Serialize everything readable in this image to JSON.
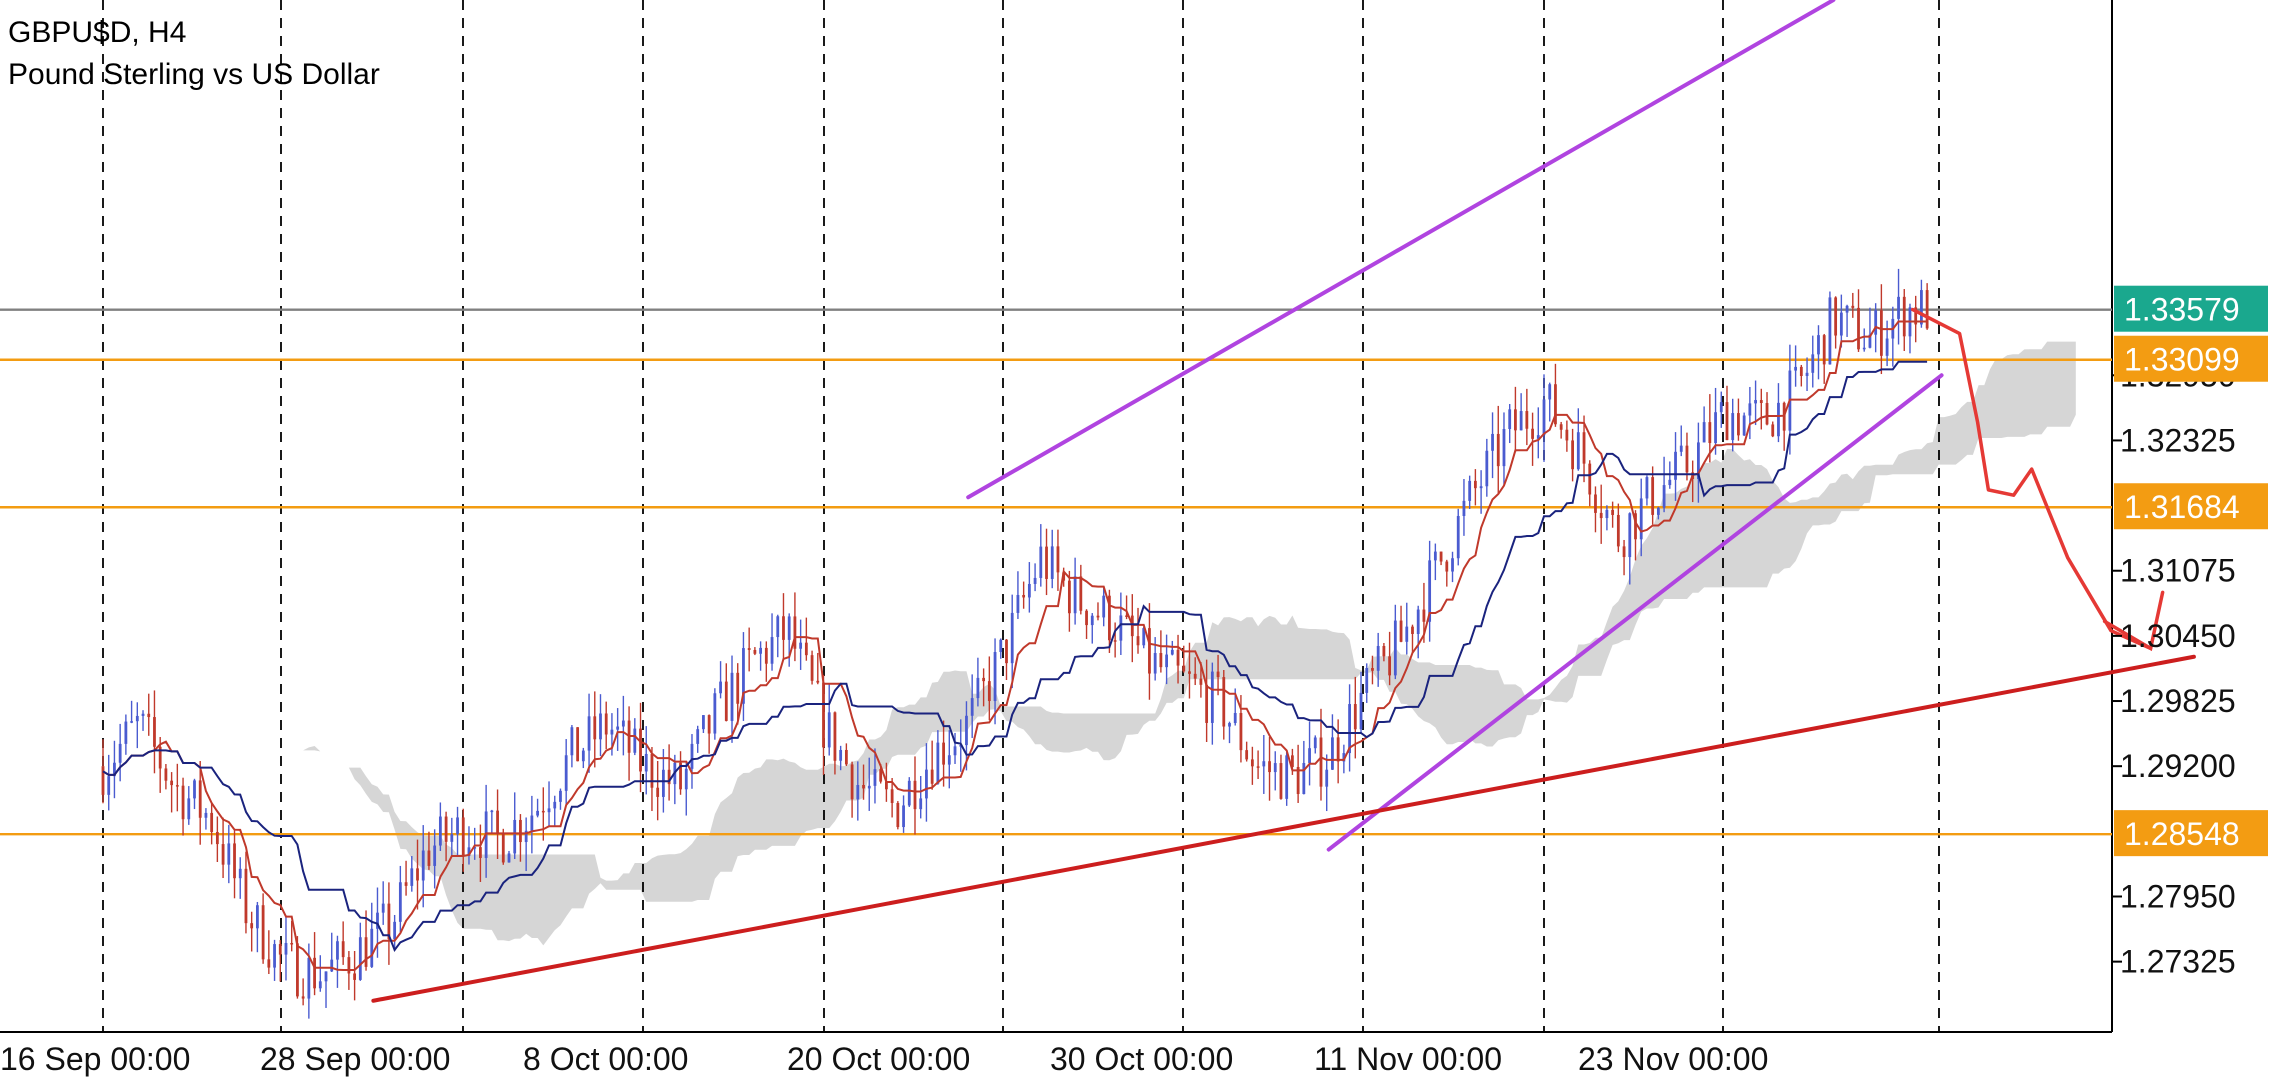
{
  "header": {
    "symbol_line": "GBPU$D, H4",
    "description": "Pound Sterling vs US Dollar"
  },
  "colors": {
    "level": "#f39c12",
    "current": "#808080",
    "current_tag": "#1aa88e",
    "channel": "#b044e0",
    "trend": "#cc1e1e",
    "tenkan": "#c0392b",
    "kijun": "#1a237e",
    "cloud": "#c8c8c8",
    "candle_up": "#4a5bd0",
    "candle_down": "#c0392b",
    "grid": "#000000",
    "annotation": "#e53935"
  },
  "chart_data": {
    "type": "candlestick",
    "symbol": "GBPU$D",
    "timeframe": "H4",
    "ylim": [
      1.2665,
      1.3655
    ],
    "y_ticks": [
      "1.27325",
      "1.27950",
      "1.29200",
      "1.29825",
      "1.30450",
      "1.31075",
      "1.32325",
      "1.32950"
    ],
    "x_ticks": [
      "16 Sep 00:00",
      "28 Sep 00:00",
      "8 Oct 00:00",
      "20 Oct 00:00",
      "30 Oct 00:00",
      "11 Nov 00:00",
      "23 Nov 00:00"
    ],
    "current_price": "1.33579",
    "levels": [
      {
        "price": "1.33099"
      },
      {
        "price": "1.31684"
      },
      {
        "price": "1.28548"
      }
    ],
    "drawn_lines": [
      {
        "name": "upper channel",
        "from": [
          24,
          1.3178
        ],
        "to": [
          48,
          1.3655
        ]
      },
      {
        "name": "lower channel",
        "from": [
          34,
          1.284
        ],
        "to": [
          51,
          1.3295
        ]
      },
      {
        "name": "trend support",
        "from": [
          7.5,
          1.2695
        ],
        "to": [
          58,
          1.3025
        ]
      }
    ],
    "ohlc_path": [
      [
        0,
        1.292
      ],
      [
        1,
        1.296
      ],
      [
        2,
        1.29
      ],
      [
        3,
        1.287
      ],
      [
        4,
        1.278
      ],
      [
        5,
        1.273
      ],
      [
        6,
        1.272
      ],
      [
        7,
        1.274
      ],
      [
        8,
        1.277
      ],
      [
        9,
        1.284
      ],
      [
        10,
        1.286
      ],
      [
        11,
        1.285
      ],
      [
        12,
        1.288
      ],
      [
        13,
        1.293
      ],
      [
        14,
        1.296
      ],
      [
        15,
        1.292
      ],
      [
        16,
        1.29
      ],
      [
        17,
        1.297
      ],
      [
        18,
        1.302
      ],
      [
        19,
        1.305
      ],
      [
        20,
        1.296
      ],
      [
        21,
        1.29
      ],
      [
        22,
        1.288
      ],
      [
        23,
        1.293
      ],
      [
        24,
        1.296
      ],
      [
        25,
        1.303
      ],
      [
        26,
        1.312
      ],
      [
        27,
        1.308
      ],
      [
        28,
        1.306
      ],
      [
        29,
        1.302
      ],
      [
        30,
        1.3
      ],
      [
        31,
        1.298
      ],
      [
        32,
        1.292
      ],
      [
        33,
        1.291
      ],
      [
        34,
        1.293
      ],
      [
        35,
        1.299
      ],
      [
        36,
        1.304
      ],
      [
        37,
        1.311
      ],
      [
        38,
        1.318
      ],
      [
        39,
        1.324
      ],
      [
        40,
        1.327
      ],
      [
        41,
        1.322
      ],
      [
        42,
        1.314
      ],
      [
        43,
        1.318
      ],
      [
        44,
        1.321
      ],
      [
        45,
        1.326
      ],
      [
        46,
        1.325
      ],
      [
        47,
        1.328
      ],
      [
        48,
        1.335
      ],
      [
        49,
        1.333
      ],
      [
        50,
        1.3358
      ]
    ],
    "forecast_path": [
      [
        50.2,
        1.3358
      ],
      [
        51.5,
        1.3335
      ],
      [
        52,
        1.325
      ],
      [
        52.3,
        1.3185
      ],
      [
        53,
        1.318
      ],
      [
        53.5,
        1.3205
      ],
      [
        54.5,
        1.312
      ],
      [
        55.7,
        1.305
      ],
      [
        56.8,
        1.3033
      ]
    ]
  }
}
